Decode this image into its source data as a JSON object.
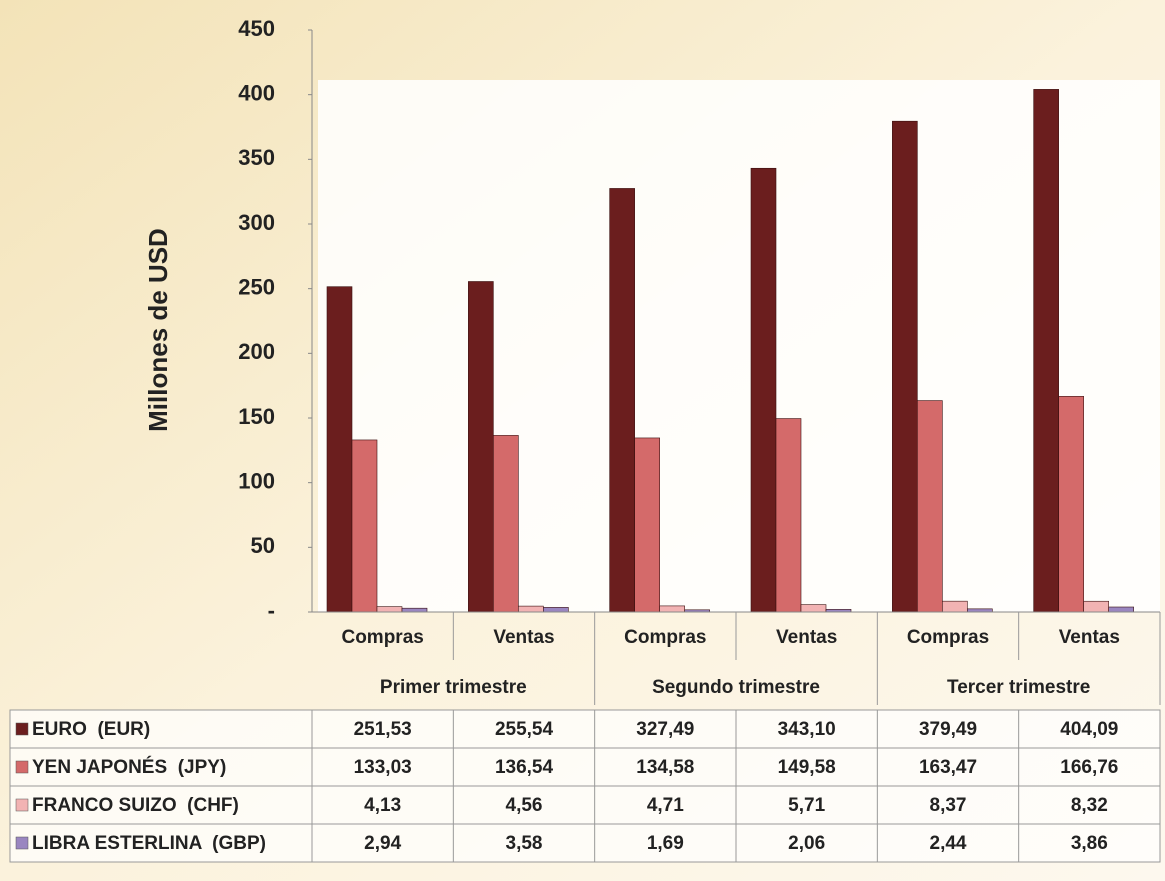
{
  "chart_data": {
    "type": "bar",
    "y_label": "Millones de USD",
    "categories": [
      "Compras",
      "Ventas",
      "Compras",
      "Ventas",
      "Compras",
      "Ventas"
    ],
    "groups": [
      "Primer trimestre",
      "Segundo trimestre",
      "Tercer trimestre"
    ],
    "ylim": [
      0,
      450
    ],
    "yticks": [
      {
        "value": 0,
        "label": "-"
      },
      50,
      100,
      150,
      200,
      250,
      300,
      350,
      400,
      450
    ],
    "series": [
      {
        "name": "EURO  (EUR)",
        "color": "#6b1e1e",
        "values": [
          251.53,
          255.54,
          327.49,
          343.1,
          379.49,
          404.09
        ],
        "value_labels": [
          "251,53",
          "255,54",
          "327,49",
          "343,10",
          "379,49",
          "404,09"
        ]
      },
      {
        "name": "YEN JAPONÉS  (JPY)",
        "color": "#d46a6a",
        "values": [
          133.03,
          136.54,
          134.58,
          149.58,
          163.47,
          166.76
        ],
        "value_labels": [
          "133,03",
          "136,54",
          "134,58",
          "149,58",
          "163,47",
          "166,76"
        ]
      },
      {
        "name": "FRANCO SUIZO  (CHF)",
        "color": "#f2b3b3",
        "values": [
          4.13,
          4.56,
          4.71,
          5.71,
          8.37,
          8.32
        ],
        "value_labels": [
          "4,13",
          "4,56",
          "4,71",
          "5,71",
          "8,37",
          "8,32"
        ]
      },
      {
        "name": "LIBRA ESTERLINA  (GBP)",
        "color": "#9a86c0",
        "values": [
          2.94,
          3.58,
          1.69,
          2.06,
          2.44,
          3.86
        ],
        "value_labels": [
          "2,94",
          "3,58",
          "1,69",
          "2,06",
          "2,44",
          "3,86"
        ]
      }
    ]
  }
}
